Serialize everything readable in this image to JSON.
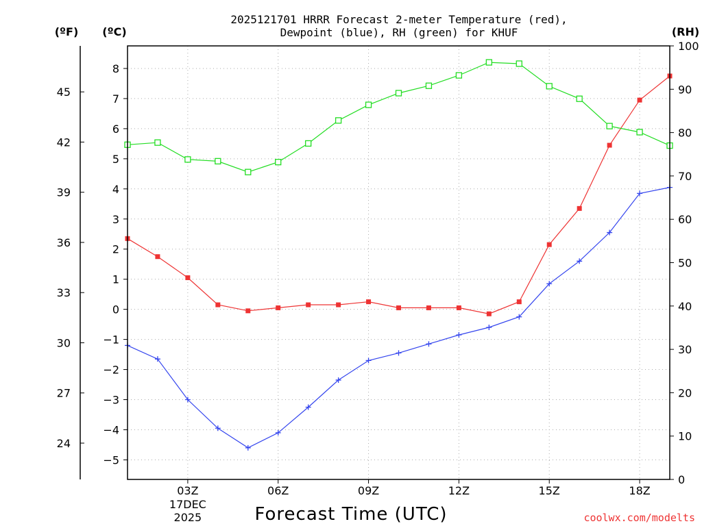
{
  "chart_data": {
    "type": "line",
    "title_lines": [
      "2025121701 HRRR Forecast 2-meter Temperature (red),",
      "Dewpoint (blue), RH (green) for KHUF"
    ],
    "xlabel": "Forecast Time (UTC)",
    "x_hours": [
      1,
      2,
      3,
      4,
      5,
      6,
      7,
      8,
      9,
      10,
      11,
      12,
      13,
      14,
      15,
      16,
      17,
      18,
      19
    ],
    "x_range": [
      1,
      19
    ],
    "x_ticks": [
      3,
      6,
      9,
      12,
      15,
      18
    ],
    "x_tick_labels": [
      "03Z",
      "06Z",
      "09Z",
      "12Z",
      "15Z",
      "18Z"
    ],
    "date_label_lines": [
      "17DEC",
      "2025"
    ],
    "left_axis": {
      "unit": "(ºC)",
      "range": [
        -5.65,
        8.75
      ],
      "ticks": [
        -5,
        -4,
        -3,
        -2,
        -1,
        0,
        1,
        2,
        3,
        4,
        5,
        6,
        7,
        8
      ],
      "tick_labels": [
        "−5",
        "−4",
        "−3",
        "−2",
        "−1",
        "0",
        "1",
        "2",
        "3",
        "4",
        "5",
        "6",
        "7",
        "8"
      ]
    },
    "fahrenheit_axis": {
      "unit": "(ºF)",
      "ticks": [
        24,
        27,
        30,
        33,
        36,
        39,
        42,
        45
      ],
      "tick_labels": [
        "24",
        "27",
        "30",
        "33",
        "36",
        "39",
        "42",
        "45"
      ]
    },
    "right_axis": {
      "unit": "(RH)",
      "range": [
        0,
        100
      ],
      "ticks": [
        0,
        10,
        20,
        30,
        40,
        50,
        60,
        70,
        80,
        90,
        100
      ],
      "tick_labels": [
        "0",
        "10",
        "20",
        "30",
        "40",
        "50",
        "60",
        "70",
        "80",
        "90",
        "100"
      ]
    },
    "series": [
      {
        "name": "Temperature",
        "axis": "left",
        "color": "#ee3333",
        "marker": "filled-square",
        "values": [
          2.35,
          1.75,
          1.05,
          0.15,
          -0.05,
          0.05,
          0.15,
          0.15,
          0.25,
          0.05,
          0.05,
          0.05,
          -0.15,
          0.25,
          2.15,
          3.35,
          5.45,
          6.95,
          7.75
        ]
      },
      {
        "name": "Dewpoint",
        "axis": "left",
        "color": "#3344ee",
        "marker": "plus",
        "values": [
          -1.2,
          -1.65,
          -3.0,
          -3.95,
          -4.6,
          -4.1,
          -3.25,
          -2.35,
          -1.7,
          -1.45,
          -1.15,
          -0.85,
          -0.6,
          -0.25,
          0.85,
          1.6,
          2.55,
          3.85,
          4.05
        ]
      },
      {
        "name": "RH",
        "axis": "right",
        "color": "#22dd22",
        "marker": "open-square",
        "values": [
          77.2,
          77.7,
          73.8,
          73.4,
          70.9,
          73.2,
          77.5,
          82.8,
          86.4,
          89.1,
          90.8,
          93.2,
          96.2,
          95.9,
          90.7,
          87.8,
          81.5,
          80.1,
          77.0
        ]
      }
    ],
    "grid": true,
    "credit": "coolwx.com/modelts",
    "colors": {
      "frame": "#000000",
      "grid": "#aaaaaa",
      "credit": "#ee3333"
    }
  }
}
